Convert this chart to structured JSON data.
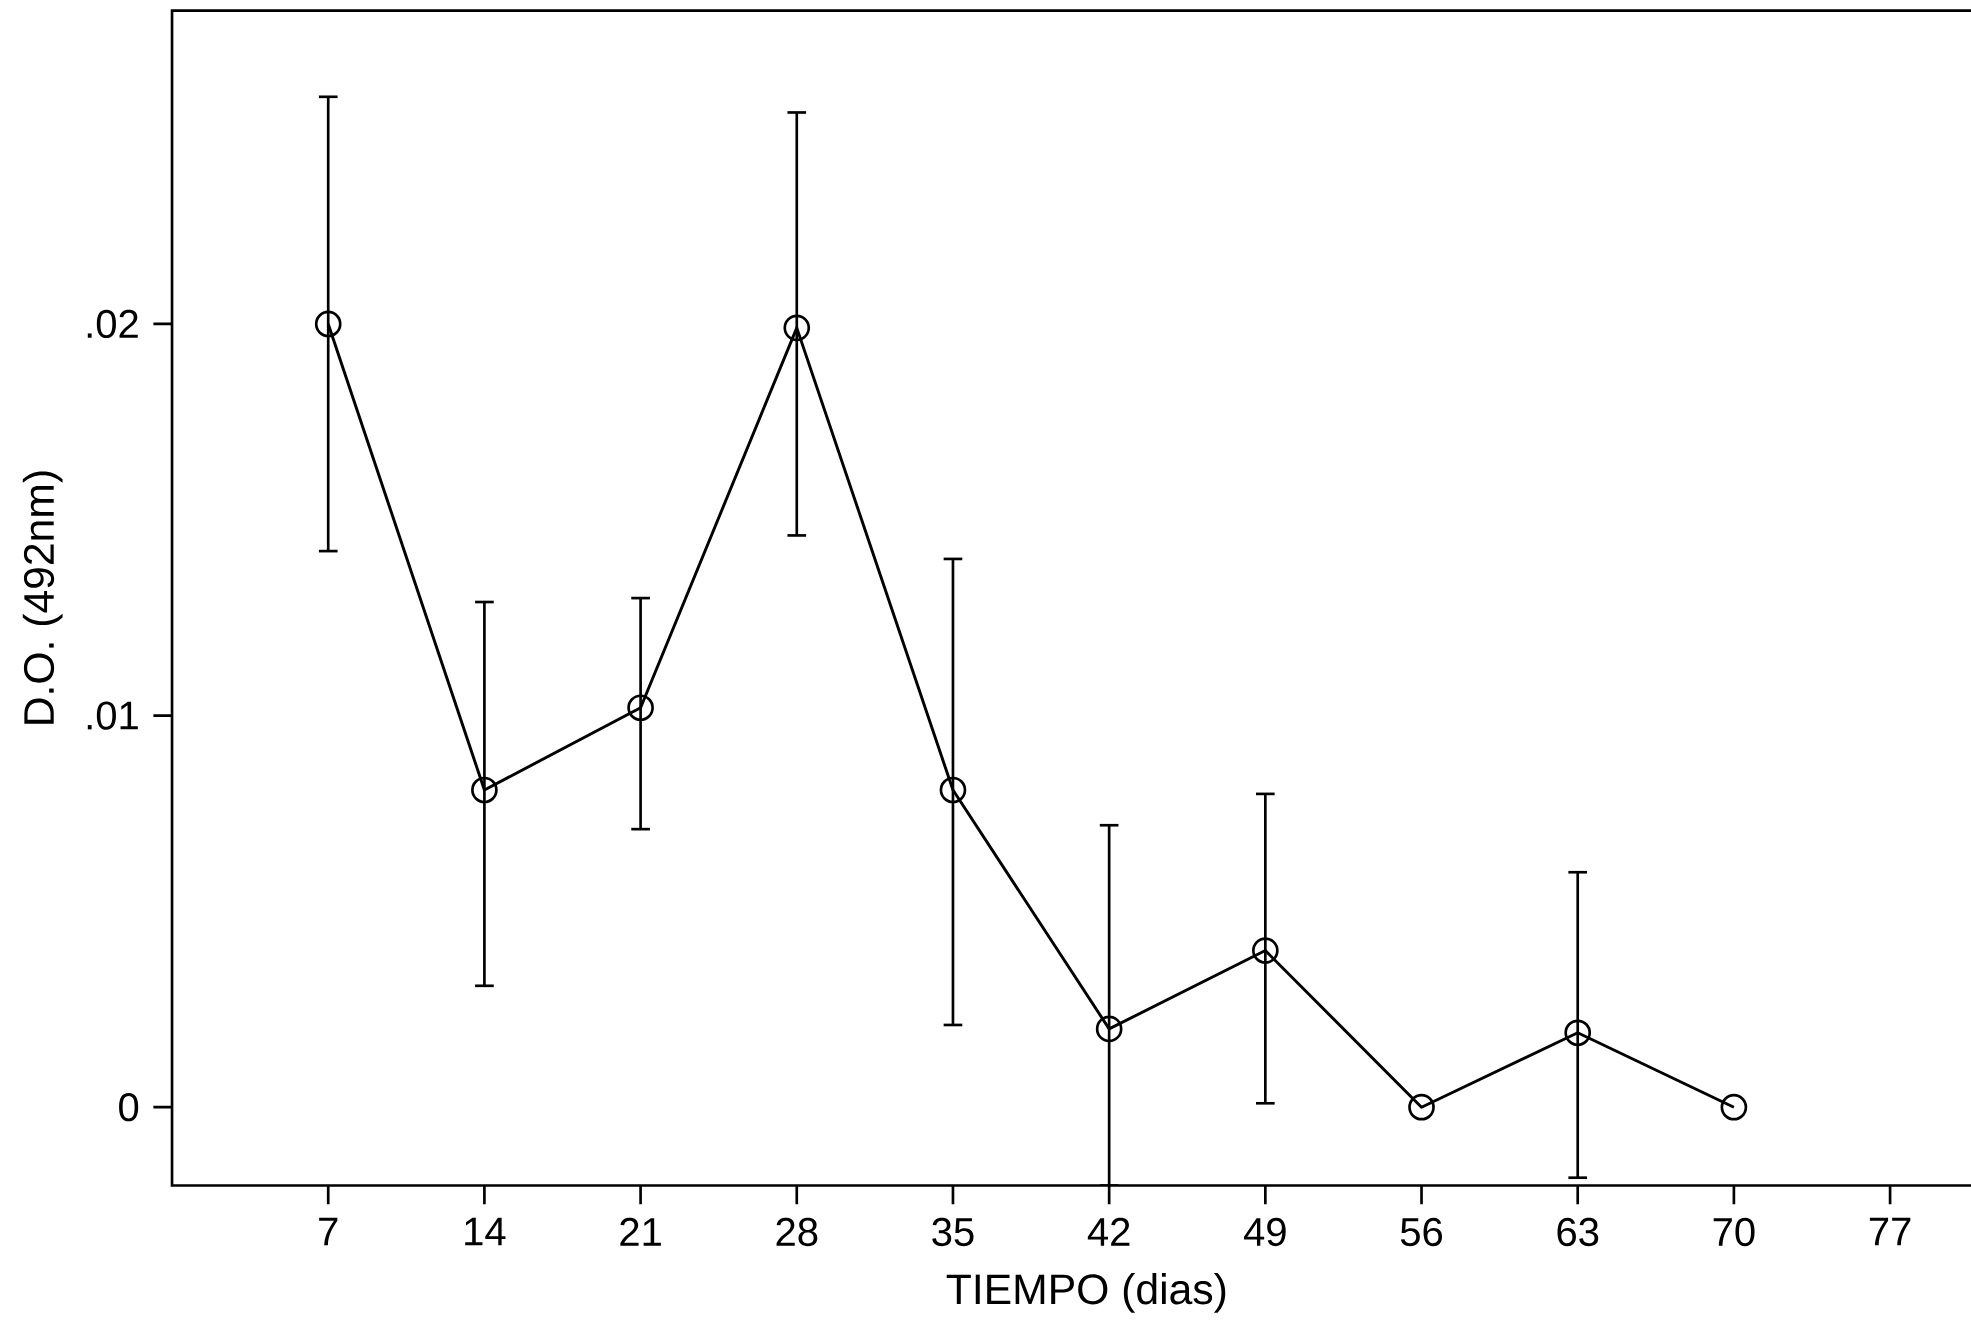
{
  "chart_data": {
    "type": "line",
    "xlabel": "TIEMPO (dias)",
    "ylabel": "D.O. (492nm)",
    "x": [
      7,
      14,
      21,
      28,
      35,
      42,
      49,
      56,
      63,
      70
    ],
    "series": [
      {
        "color": "#000000",
        "values": [
          0.02,
          0.0081,
          0.0102,
          0.0199,
          0.0081,
          0.002,
          0.004,
          0.0,
          0.0019,
          0.0
        ],
        "errors": [
          [
            0.0142,
            0.0258
          ],
          [
            0.0031,
            0.0129
          ],
          [
            0.0071,
            0.013
          ],
          [
            0.0146,
            0.0254
          ],
          [
            0.0021,
            0.014
          ],
          [
            -0.002,
            0.0072
          ],
          [
            0.0001,
            0.008
          ],
          null,
          [
            -0.0018,
            0.006
          ],
          null
        ]
      }
    ],
    "marker": "circle",
    "line_style": "solid",
    "xlim": [
      0,
      82
    ],
    "ylim": [
      -0.002,
      0.028
    ],
    "xticks": [
      7,
      14,
      21,
      28,
      35,
      42,
      49,
      56,
      63,
      70,
      77
    ],
    "yticks": [
      {
        "value": 0,
        "label": "0"
      },
      {
        "value": 0.01,
        "label": ".01"
      },
      {
        "value": 0.02,
        "label": ".02"
      }
    ]
  }
}
